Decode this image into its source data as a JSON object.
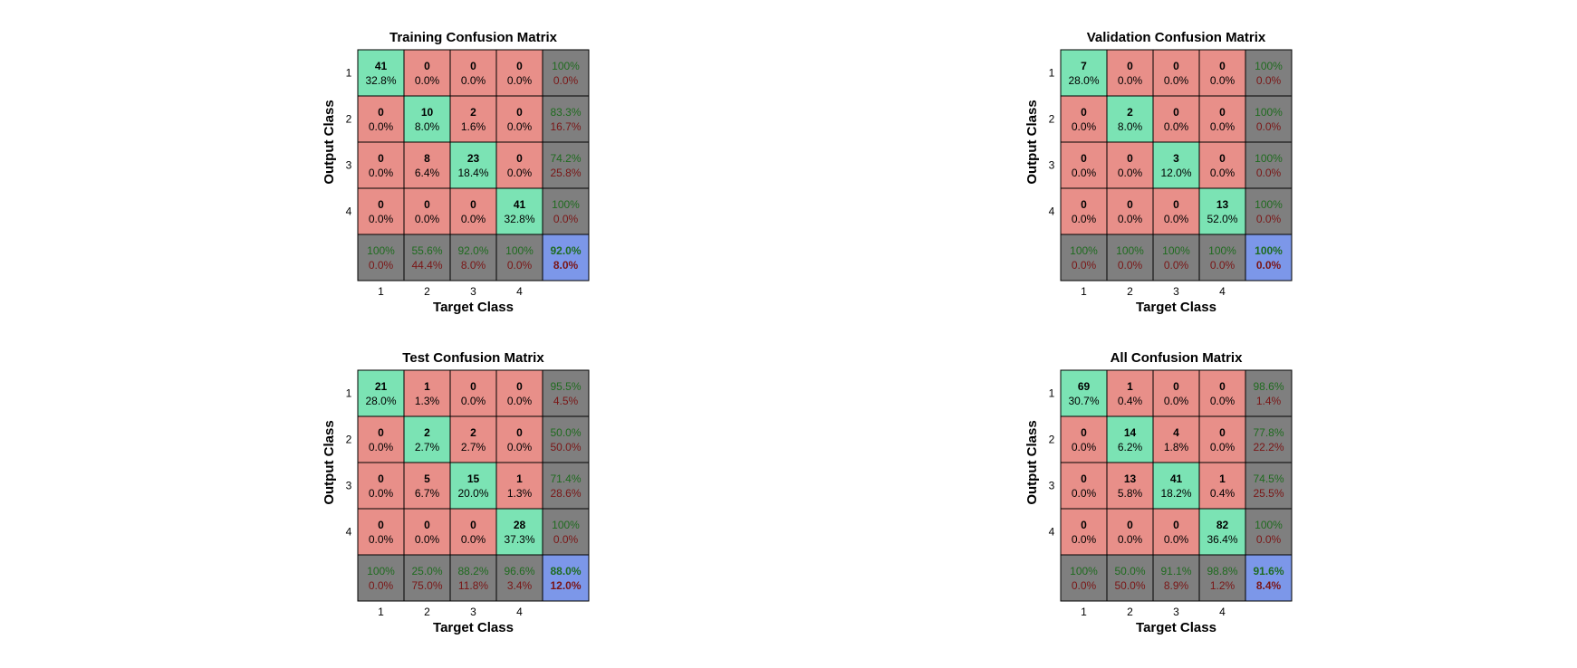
{
  "colors": {
    "correct": "#7be3b4",
    "incorrect": "#e88f89",
    "summary": "#7f7f7f",
    "overall": "#7c97e9",
    "pct_good": "#1f6b1f",
    "pct_bad": "#7a1616",
    "grid": "#000000"
  },
  "chart_data": [
    {
      "type": "heatmap",
      "title": "Training Confusion Matrix",
      "xlabel": "Target Class",
      "ylabel": "Output Class",
      "x_ticks": [
        "1",
        "2",
        "3",
        "4"
      ],
      "y_ticks": [
        "1",
        "2",
        "3",
        "4"
      ],
      "cells": [
        [
          {
            "count": "41",
            "pct": "32.8%"
          },
          {
            "count": "0",
            "pct": "0.0%"
          },
          {
            "count": "0",
            "pct": "0.0%"
          },
          {
            "count": "0",
            "pct": "0.0%"
          }
        ],
        [
          {
            "count": "0",
            "pct": "0.0%"
          },
          {
            "count": "10",
            "pct": "8.0%"
          },
          {
            "count": "2",
            "pct": "1.6%"
          },
          {
            "count": "0",
            "pct": "0.0%"
          }
        ],
        [
          {
            "count": "0",
            "pct": "0.0%"
          },
          {
            "count": "8",
            "pct": "6.4%"
          },
          {
            "count": "23",
            "pct": "18.4%"
          },
          {
            "count": "0",
            "pct": "0.0%"
          }
        ],
        [
          {
            "count": "0",
            "pct": "0.0%"
          },
          {
            "count": "0",
            "pct": "0.0%"
          },
          {
            "count": "0",
            "pct": "0.0%"
          },
          {
            "count": "41",
            "pct": "32.8%"
          }
        ]
      ],
      "row_summary": [
        [
          "100%",
          "0.0%"
        ],
        [
          "83.3%",
          "16.7%"
        ],
        [
          "74.2%",
          "25.8%"
        ],
        [
          "100%",
          "0.0%"
        ]
      ],
      "col_summary": [
        [
          "100%",
          "0.0%"
        ],
        [
          "55.6%",
          "44.4%"
        ],
        [
          "92.0%",
          "8.0%"
        ],
        [
          "100%",
          "0.0%"
        ]
      ],
      "overall": [
        "92.0%",
        "8.0%"
      ]
    },
    {
      "type": "heatmap",
      "title": "Validation Confusion Matrix",
      "xlabel": "Target Class",
      "ylabel": "Output Class",
      "x_ticks": [
        "1",
        "2",
        "3",
        "4"
      ],
      "y_ticks": [
        "1",
        "2",
        "3",
        "4"
      ],
      "cells": [
        [
          {
            "count": "7",
            "pct": "28.0%"
          },
          {
            "count": "0",
            "pct": "0.0%"
          },
          {
            "count": "0",
            "pct": "0.0%"
          },
          {
            "count": "0",
            "pct": "0.0%"
          }
        ],
        [
          {
            "count": "0",
            "pct": "0.0%"
          },
          {
            "count": "2",
            "pct": "8.0%"
          },
          {
            "count": "0",
            "pct": "0.0%"
          },
          {
            "count": "0",
            "pct": "0.0%"
          }
        ],
        [
          {
            "count": "0",
            "pct": "0.0%"
          },
          {
            "count": "0",
            "pct": "0.0%"
          },
          {
            "count": "3",
            "pct": "12.0%"
          },
          {
            "count": "0",
            "pct": "0.0%"
          }
        ],
        [
          {
            "count": "0",
            "pct": "0.0%"
          },
          {
            "count": "0",
            "pct": "0.0%"
          },
          {
            "count": "0",
            "pct": "0.0%"
          },
          {
            "count": "13",
            "pct": "52.0%"
          }
        ]
      ],
      "row_summary": [
        [
          "100%",
          "0.0%"
        ],
        [
          "100%",
          "0.0%"
        ],
        [
          "100%",
          "0.0%"
        ],
        [
          "100%",
          "0.0%"
        ]
      ],
      "col_summary": [
        [
          "100%",
          "0.0%"
        ],
        [
          "100%",
          "0.0%"
        ],
        [
          "100%",
          "0.0%"
        ],
        [
          "100%",
          "0.0%"
        ]
      ],
      "overall": [
        "100%",
        "0.0%"
      ]
    },
    {
      "type": "heatmap",
      "title": "Test Confusion Matrix",
      "xlabel": "Target Class",
      "ylabel": "Output Class",
      "x_ticks": [
        "1",
        "2",
        "3",
        "4"
      ],
      "y_ticks": [
        "1",
        "2",
        "3",
        "4"
      ],
      "cells": [
        [
          {
            "count": "21",
            "pct": "28.0%"
          },
          {
            "count": "1",
            "pct": "1.3%"
          },
          {
            "count": "0",
            "pct": "0.0%"
          },
          {
            "count": "0",
            "pct": "0.0%"
          }
        ],
        [
          {
            "count": "0",
            "pct": "0.0%"
          },
          {
            "count": "2",
            "pct": "2.7%"
          },
          {
            "count": "2",
            "pct": "2.7%"
          },
          {
            "count": "0",
            "pct": "0.0%"
          }
        ],
        [
          {
            "count": "0",
            "pct": "0.0%"
          },
          {
            "count": "5",
            "pct": "6.7%"
          },
          {
            "count": "15",
            "pct": "20.0%"
          },
          {
            "count": "1",
            "pct": "1.3%"
          }
        ],
        [
          {
            "count": "0",
            "pct": "0.0%"
          },
          {
            "count": "0",
            "pct": "0.0%"
          },
          {
            "count": "0",
            "pct": "0.0%"
          },
          {
            "count": "28",
            "pct": "37.3%"
          }
        ]
      ],
      "row_summary": [
        [
          "95.5%",
          "4.5%"
        ],
        [
          "50.0%",
          "50.0%"
        ],
        [
          "71.4%",
          "28.6%"
        ],
        [
          "100%",
          "0.0%"
        ]
      ],
      "col_summary": [
        [
          "100%",
          "0.0%"
        ],
        [
          "25.0%",
          "75.0%"
        ],
        [
          "88.2%",
          "11.8%"
        ],
        [
          "96.6%",
          "3.4%"
        ]
      ],
      "overall": [
        "88.0%",
        "12.0%"
      ]
    },
    {
      "type": "heatmap",
      "title": "All Confusion Matrix",
      "xlabel": "Target Class",
      "ylabel": "Output Class",
      "x_ticks": [
        "1",
        "2",
        "3",
        "4"
      ],
      "y_ticks": [
        "1",
        "2",
        "3",
        "4"
      ],
      "cells": [
        [
          {
            "count": "69",
            "pct": "30.7%"
          },
          {
            "count": "1",
            "pct": "0.4%"
          },
          {
            "count": "0",
            "pct": "0.0%"
          },
          {
            "count": "0",
            "pct": "0.0%"
          }
        ],
        [
          {
            "count": "0",
            "pct": "0.0%"
          },
          {
            "count": "14",
            "pct": "6.2%"
          },
          {
            "count": "4",
            "pct": "1.8%"
          },
          {
            "count": "0",
            "pct": "0.0%"
          }
        ],
        [
          {
            "count": "0",
            "pct": "0.0%"
          },
          {
            "count": "13",
            "pct": "5.8%"
          },
          {
            "count": "41",
            "pct": "18.2%"
          },
          {
            "count": "1",
            "pct": "0.4%"
          }
        ],
        [
          {
            "count": "0",
            "pct": "0.0%"
          },
          {
            "count": "0",
            "pct": "0.0%"
          },
          {
            "count": "0",
            "pct": "0.0%"
          },
          {
            "count": "82",
            "pct": "36.4%"
          }
        ]
      ],
      "row_summary": [
        [
          "98.6%",
          "1.4%"
        ],
        [
          "77.8%",
          "22.2%"
        ],
        [
          "74.5%",
          "25.5%"
        ],
        [
          "100%",
          "0.0%"
        ]
      ],
      "col_summary": [
        [
          "100%",
          "0.0%"
        ],
        [
          "50.0%",
          "50.0%"
        ],
        [
          "91.1%",
          "8.9%"
        ],
        [
          "98.8%",
          "1.2%"
        ]
      ],
      "overall": [
        "91.6%",
        "8.4%"
      ]
    }
  ]
}
